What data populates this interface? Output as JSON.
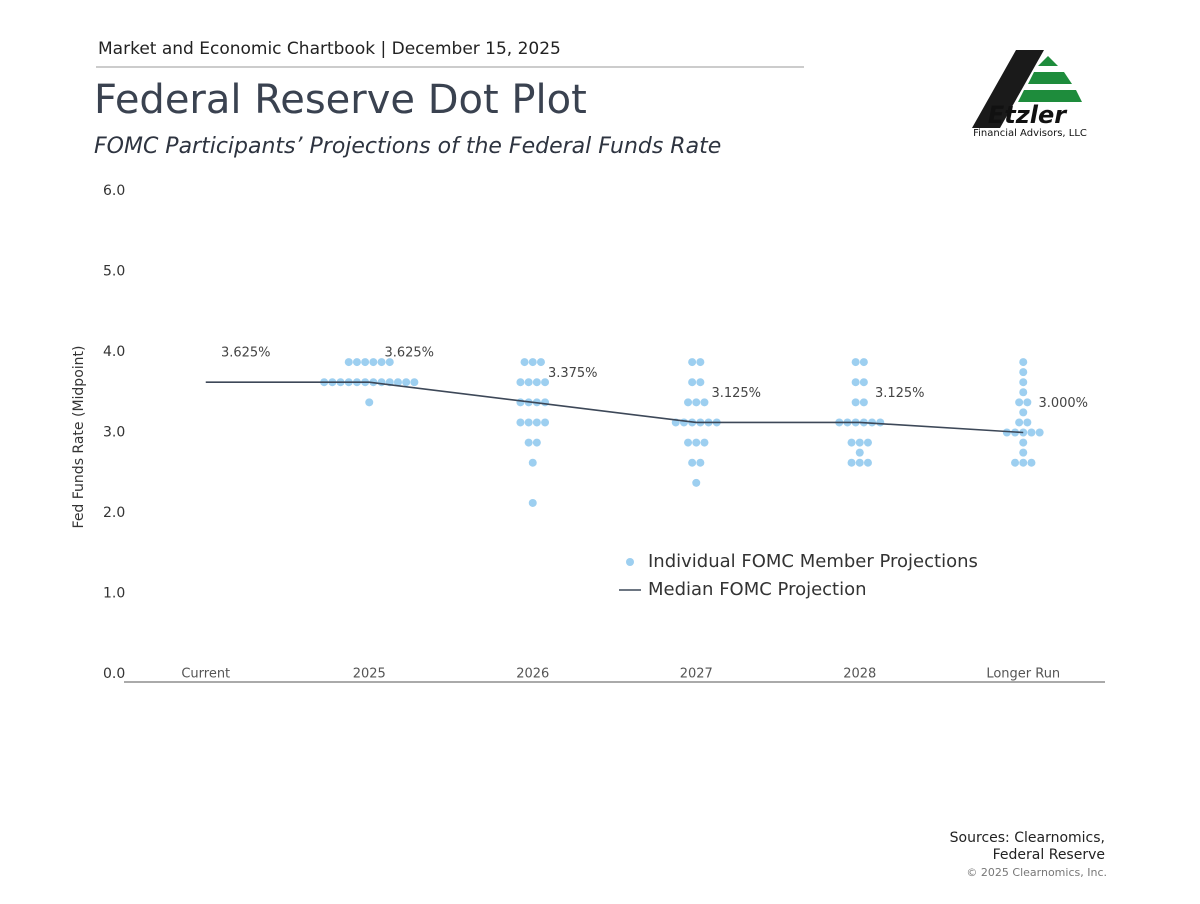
{
  "chart_data": {
    "type": "dot",
    "header": "Market and Economic Chartbook | December 15, 2025",
    "title": "Federal Reserve Dot Plot",
    "subtitle": "FOMC Participants’ Projections of the Federal Funds Rate",
    "y_label": "Fed Funds Rate (Midpoint)",
    "logo": {
      "name": "Etzler",
      "tagline": "Financial Advisors, LLC"
    },
    "sources": [
      "Sources: Clearnomics,",
      "Federal Reserve"
    ],
    "copyright": "© 2025 Clearnomics, Inc.",
    "categories": [
      "Current",
      "2025",
      "2026",
      "2027",
      "2028",
      "Longer Run"
    ],
    "ylim": [
      0,
      6
    ],
    "yticks": [
      {
        "value": 0,
        "label": "0.0"
      },
      {
        "value": 1,
        "label": "1.0"
      },
      {
        "value": 2,
        "label": "2.0"
      },
      {
        "value": 3,
        "label": "3.0"
      },
      {
        "value": 4,
        "label": "4.0"
      },
      {
        "value": 5,
        "label": "5.0"
      },
      {
        "value": 6,
        "label": "6.0"
      }
    ],
    "grid": false,
    "legend": "center",
    "series": [
      {
        "name": "Individual FOMC Member Projections",
        "color": "#9dcff0",
        "kind": "dots",
        "values": [
          [],
          [
            3.875,
            3.875,
            3.875,
            3.875,
            3.875,
            3.875,
            3.625,
            3.625,
            3.625,
            3.625,
            3.625,
            3.625,
            3.625,
            3.625,
            3.625,
            3.625,
            3.625,
            3.625,
            3.375
          ],
          [
            3.875,
            3.875,
            3.875,
            3.625,
            3.625,
            3.625,
            3.625,
            3.375,
            3.375,
            3.375,
            3.375,
            3.125,
            3.125,
            3.125,
            3.125,
            2.875,
            2.875,
            2.625,
            2.125
          ],
          [
            3.875,
            3.875,
            3.625,
            3.625,
            3.375,
            3.375,
            3.375,
            3.125,
            3.125,
            3.125,
            3.125,
            3.125,
            3.125,
            2.875,
            2.875,
            2.875,
            2.625,
            2.625,
            2.375
          ],
          [
            3.875,
            3.875,
            3.625,
            3.625,
            3.375,
            3.375,
            3.125,
            3.125,
            3.125,
            3.125,
            3.125,
            3.125,
            2.875,
            2.875,
            2.875,
            2.75,
            2.625,
            2.625,
            2.625
          ],
          [
            3.875,
            3.75,
            3.625,
            3.5,
            3.375,
            3.375,
            3.25,
            3.125,
            3.125,
            3.0,
            3.0,
            3.0,
            3.0,
            3.0,
            2.875,
            2.75,
            2.625,
            2.625,
            2.625
          ]
        ]
      },
      {
        "name": "Median FOMC Projection",
        "color": "#3d4858",
        "kind": "line",
        "values": [
          3.625,
          3.625,
          3.375,
          3.125,
          3.125,
          3.0
        ],
        "value_labels": [
          "3.625%",
          "3.625%",
          "3.375%",
          "3.125%",
          "3.125%",
          "3.000%"
        ]
      }
    ]
  }
}
